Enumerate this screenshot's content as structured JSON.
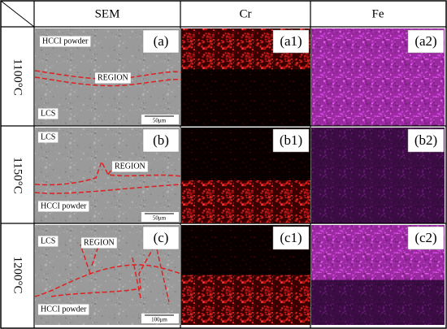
{
  "header": {
    "columns": [
      "SEM",
      "Cr",
      "Fe"
    ]
  },
  "rows": [
    {
      "temperature": "1100°C",
      "panels": [
        "(a)",
        "(a1)",
        "(a2)"
      ],
      "labels": [
        "HCCI powder",
        "REGION",
        "LCS"
      ],
      "scale_bar": "50μm"
    },
    {
      "temperature": "1150°C",
      "panels": [
        "(b)",
        "(b1)",
        "(b2)"
      ],
      "labels": [
        "LCS",
        "REGION",
        "HCCI powder"
      ],
      "scale_bar": "50μm"
    },
    {
      "temperature": "1200°C",
      "panels": [
        "(c)",
        "(c1)",
        "(c2)"
      ],
      "labels": [
        "LCS",
        "REGION",
        "HCCI powder"
      ],
      "scale_bar": "100μm"
    }
  ]
}
